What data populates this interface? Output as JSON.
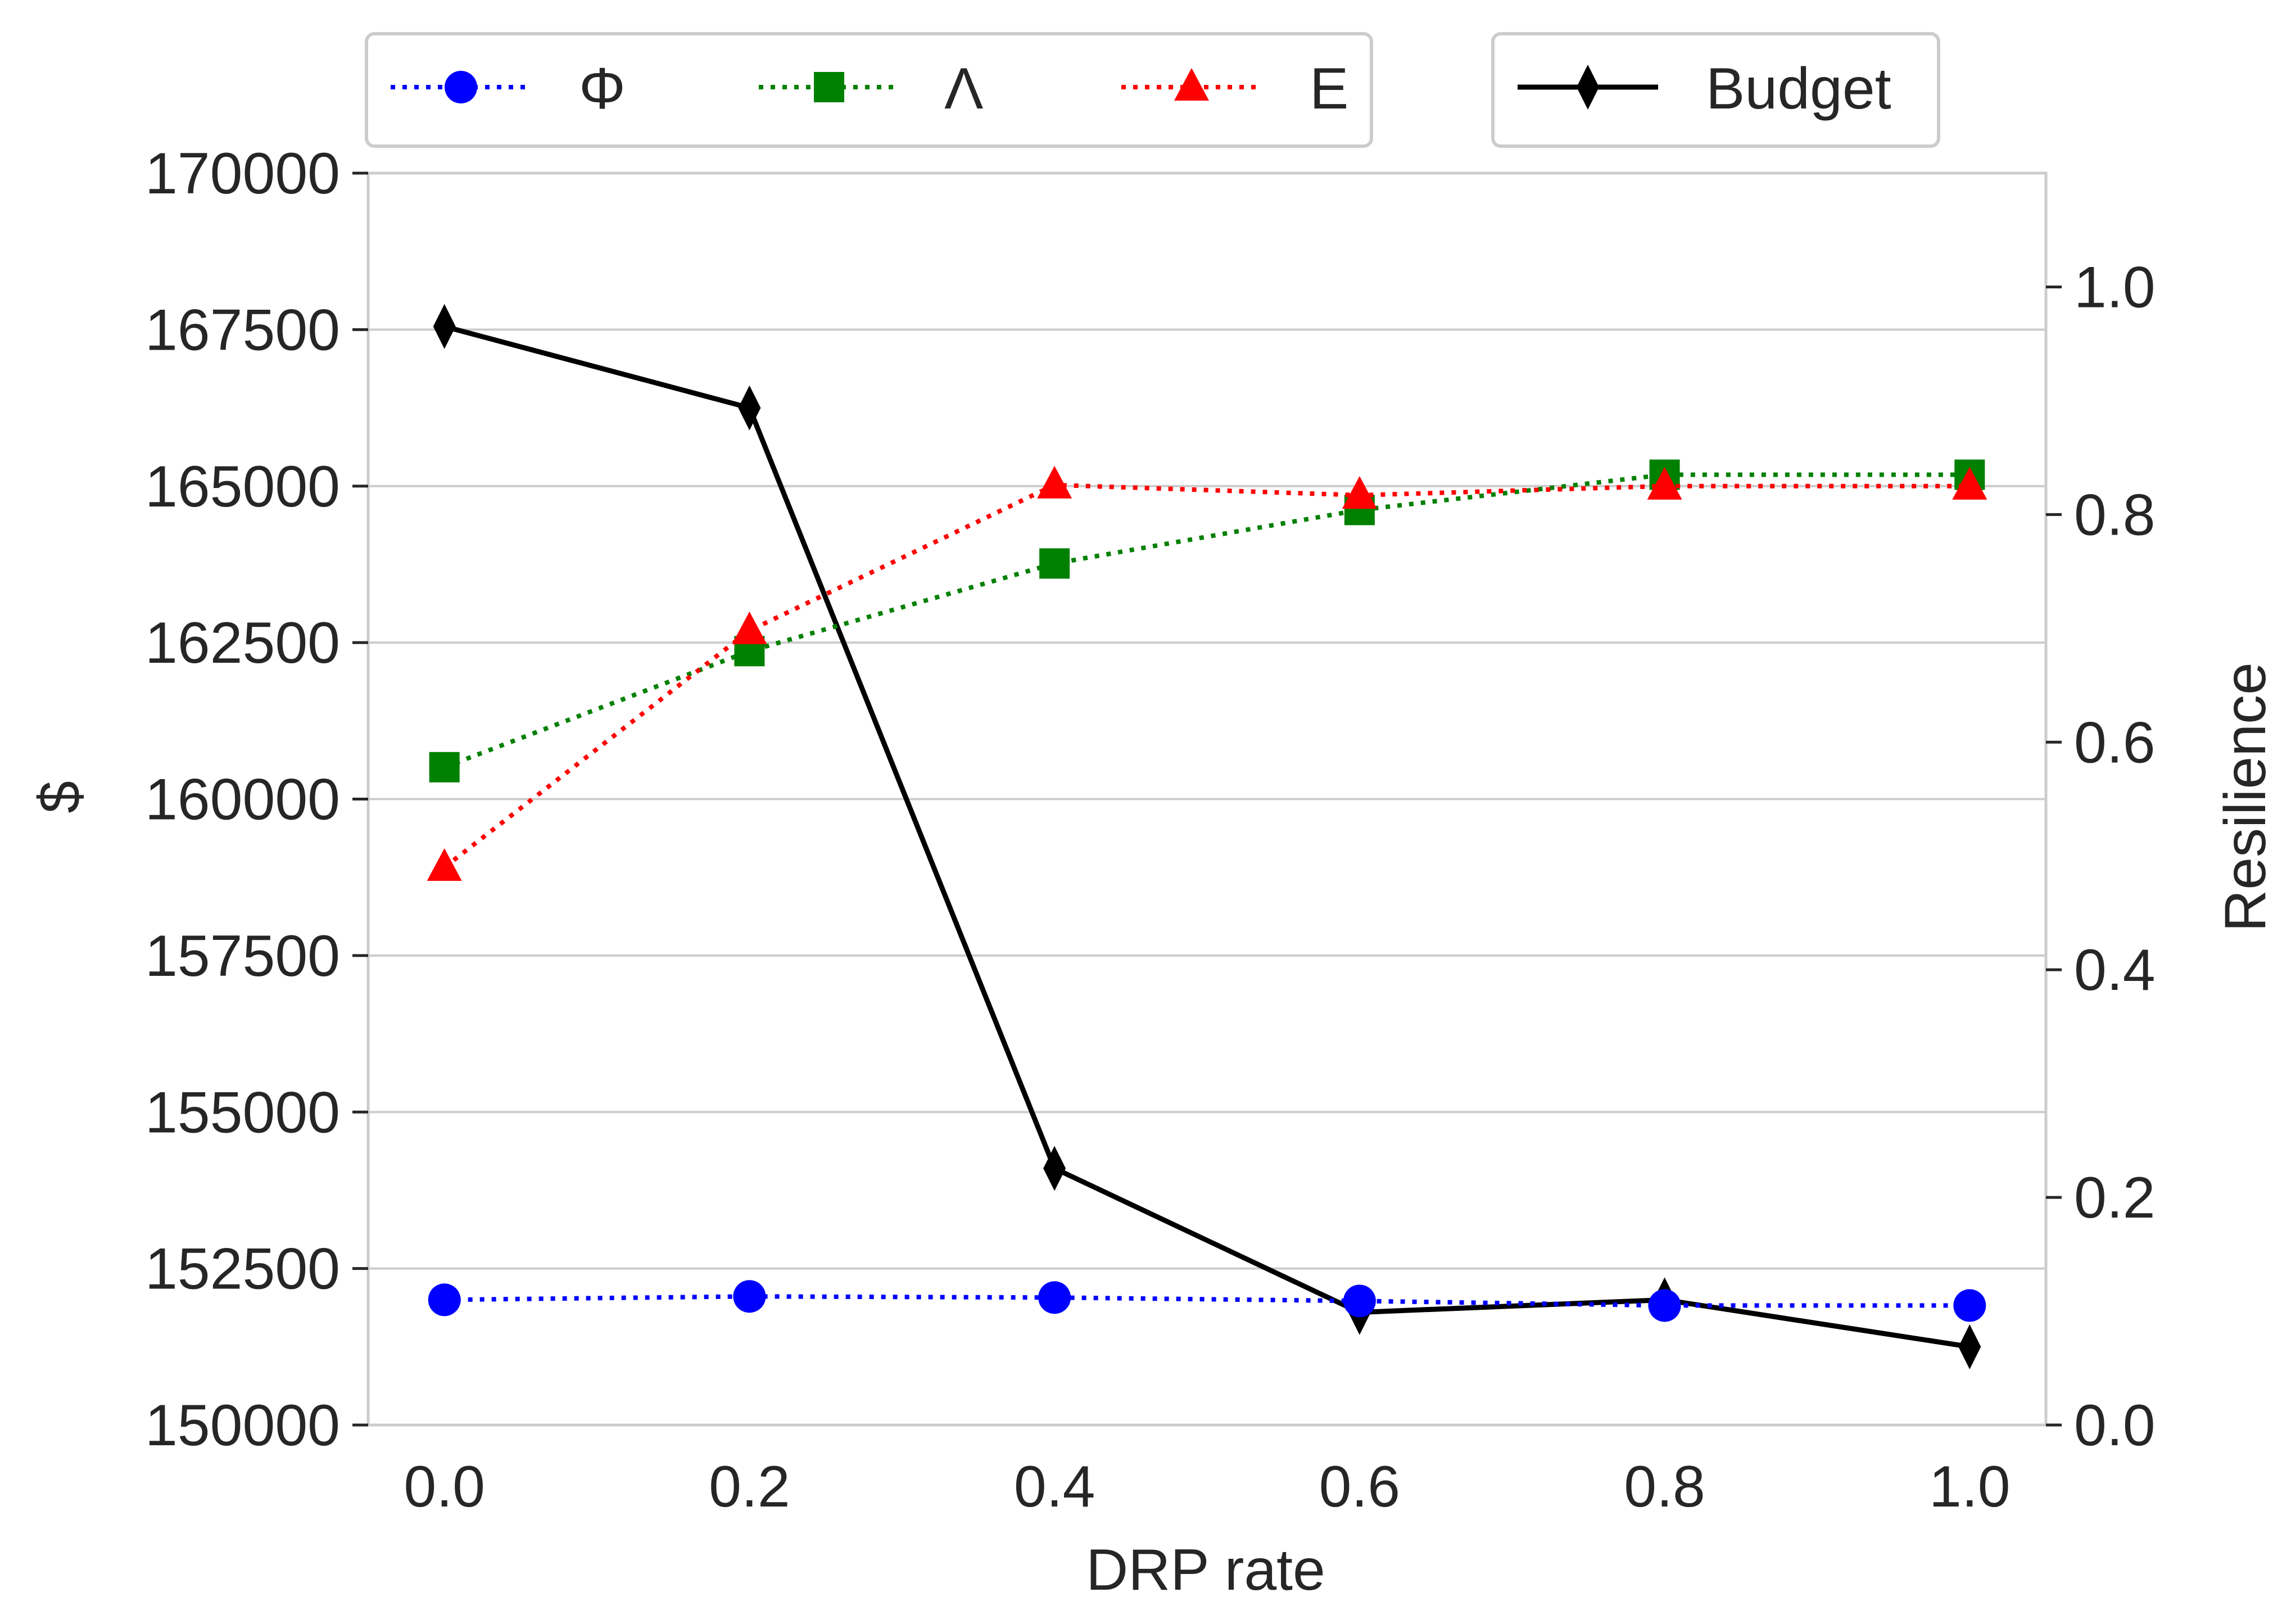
{
  "chart_data": {
    "type": "line",
    "xlabel": "DRP rate",
    "ylabel_left": "$",
    "ylabel_right": "Resilience",
    "x": [
      0.0,
      0.2,
      0.4,
      0.6,
      0.8,
      1.0
    ],
    "x_ticks": [
      "0.0",
      "0.2",
      "0.4",
      "0.6",
      "0.8",
      "1.0"
    ],
    "xlim": [
      -0.05,
      1.05
    ],
    "ylim_left": [
      150000,
      170000
    ],
    "y_ticks_left": [
      "150000",
      "152500",
      "155000",
      "157500",
      "160000",
      "162500",
      "165000",
      "167500",
      "170000"
    ],
    "ylim_right": [
      0.0,
      1.1
    ],
    "y_ticks_right": [
      "0.0",
      "0.2",
      "0.4",
      "0.6",
      "0.8",
      "1.0"
    ],
    "grid": true,
    "legend_placement": "above plot",
    "series": [
      {
        "name": "Φ",
        "axis": "right",
        "color": "#0000ff",
        "linestyle": "dotted",
        "marker": "circle",
        "values": [
          0.11,
          0.113,
          0.112,
          0.109,
          0.105,
          0.105
        ]
      },
      {
        "name": "Λ",
        "axis": "right",
        "color": "#008000",
        "linestyle": "dotted",
        "marker": "square",
        "values": [
          0.578,
          0.68,
          0.757,
          0.804,
          0.835,
          0.835
        ]
      },
      {
        "name": "Ε",
        "axis": "right",
        "color": "#ff0000",
        "linestyle": "dotted",
        "marker": "triangle",
        "values": [
          0.49,
          0.698,
          0.826,
          0.817,
          0.825,
          0.825
        ]
      },
      {
        "name": "Budget",
        "axis": "left",
        "color": "#000000",
        "linestyle": "solid",
        "marker": "thin_diamond",
        "values": [
          167550,
          166250,
          154100,
          151800,
          152000,
          151250
        ]
      }
    ]
  }
}
